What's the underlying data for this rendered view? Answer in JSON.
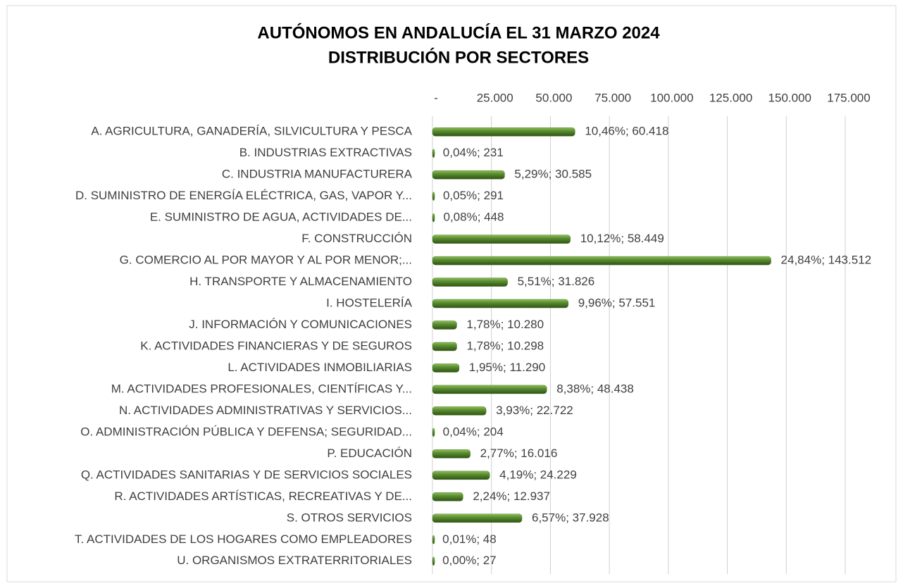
{
  "chart_data": {
    "type": "barh",
    "title": [
      "AUTÓNOMOS EN ANDALUCÍA EL 31 MARZO 2024",
      "DISTRIBUCIÓN POR SECTORES"
    ],
    "categories": [
      "A. AGRICULTURA, GANADERÍA, SILVICULTURA Y PESCA",
      "B. INDUSTRIAS EXTRACTIVAS",
      "C. INDUSTRIA MANUFACTURERA",
      "D. SUMINISTRO DE ENERGÍA ELÉCTRICA, GAS, VAPOR Y...",
      "E. SUMINISTRO DE AGUA, ACTIVIDADES DE...",
      "F. CONSTRUCCIÓN",
      "G. COMERCIO AL POR MAYOR Y AL POR MENOR;...",
      "H. TRANSPORTE Y ALMACENAMIENTO",
      "I. HOSTELERÍA",
      "J. INFORMACIÓN Y COMUNICACIONES",
      "K. ACTIVIDADES FINANCIERAS Y DE SEGUROS",
      "L. ACTIVIDADES INMOBILIARIAS",
      "M. ACTIVIDADES PROFESIONALES, CIENTÍFICAS Y...",
      "N. ACTIVIDADES ADMINISTRATIVAS Y SERVICIOS...",
      "O. ADMINISTRACIÓN PÚBLICA Y DEFENSA; SEGURIDAD...",
      "P. EDUCACIÓN",
      "Q. ACTIVIDADES SANITARIAS Y DE SERVICIOS SOCIALES",
      "R. ACTIVIDADES ARTÍSTICAS, RECREATIVAS Y DE...",
      "S. OTROS SERVICIOS",
      "T. ACTIVIDADES DE LOS HOGARES COMO EMPLEADORES",
      "U. ORGANISMOS EXTRATERRITORIALES"
    ],
    "values": [
      60418,
      231,
      30585,
      291,
      448,
      58449,
      143512,
      31826,
      57551,
      10280,
      10298,
      11290,
      48438,
      22722,
      204,
      16016,
      24229,
      12937,
      37928,
      48,
      27
    ],
    "value_labels": [
      "10,46%; 60.418",
      "0,04%; 231",
      "5,29%; 30.585",
      "0,05%; 291",
      "0,08%; 448",
      "10,12%; 58.449",
      "24,84%; 143.512",
      "5,51%; 31.826",
      "9,96%; 57.551",
      "1,78%; 10.280",
      "1,78%; 10.298",
      "1,95%; 11.290",
      "8,38%; 48.438",
      "3,93%; 22.722",
      "0,04%; 204",
      "2,77%; 16.016",
      "4,19%; 24.229",
      "2,24%; 12.937",
      "6,57%; 37.928",
      "0,01%; 48",
      "0,00%; 27"
    ],
    "color": "#4f7f2a",
    "xlim": [
      0,
      175000
    ],
    "xticks": [
      {
        "value": 0,
        "label": "-"
      },
      {
        "value": 25000,
        "label": "25.000"
      },
      {
        "value": 50000,
        "label": "50.000"
      },
      {
        "value": 75000,
        "label": "75.000"
      },
      {
        "value": 100000,
        "label": "100.000"
      },
      {
        "value": 125000,
        "label": "125.000"
      },
      {
        "value": 150000,
        "label": "150.000"
      },
      {
        "value": 175000,
        "label": "175.000"
      }
    ],
    "grid": true
  }
}
